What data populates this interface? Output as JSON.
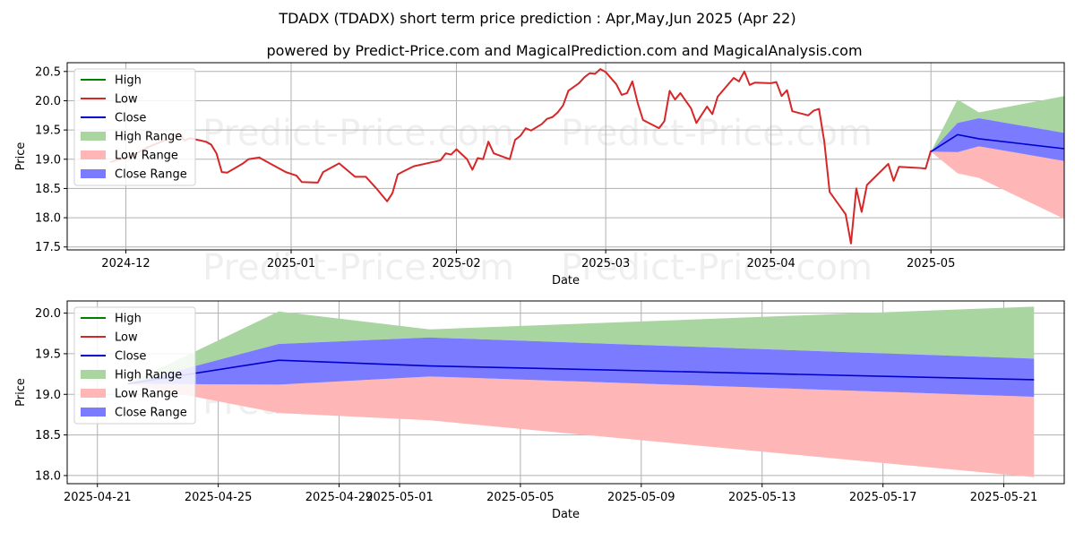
{
  "title": "TDADX (TDADX) short term price prediction : Apr,May,Jun 2025 (Apr 22)",
  "subtitle": "powered by Predict-Price.com and MagicalPrediction.com and MagicalAnalysis.com",
  "watermark": "Predict-Price.com",
  "colors": {
    "high": "#008000",
    "low": "#d62728",
    "close": "#0000cc",
    "high_range": "#a9d5a1",
    "low_range": "#ffb6b6",
    "close_range": "#7b7bff"
  },
  "chart_data": [
    {
      "type": "line",
      "xlabel": "Date",
      "ylabel": "Price",
      "ylim": [
        17.45,
        20.65
      ],
      "yticks": [
        17.5,
        18.0,
        18.5,
        19.0,
        19.5,
        20.0,
        20.5
      ],
      "ytick_labels": [
        "17.5",
        "18.0",
        "18.5",
        "19.0",
        "19.5",
        "20.0",
        "20.5"
      ],
      "xlim": [
        "2024-11-20",
        "2025-05-26"
      ],
      "xticks": [
        "2024-12-01",
        "2025-01-01",
        "2025-02-01",
        "2025-03-01",
        "2025-04-01",
        "2025-05-01"
      ],
      "xtick_labels": [
        "2024-12",
        "2025-01",
        "2025-02",
        "2025-03",
        "2025-04",
        "2025-05"
      ],
      "grid": true,
      "legend_position": "upper-left",
      "legend": [
        "High",
        "Low",
        "Close",
        "High Range",
        "Low Range",
        "Close Range"
      ],
      "low_history": [
        [
          "2024-11-28",
          18.95
        ],
        [
          "2024-12-02",
          19.05
        ],
        [
          "2024-12-05",
          19.2
        ],
        [
          "2024-12-09",
          19.35
        ],
        [
          "2024-12-11",
          19.45
        ],
        [
          "2024-12-12",
          19.32
        ],
        [
          "2024-12-13",
          19.36
        ],
        [
          "2024-12-16",
          19.3
        ],
        [
          "2024-12-17",
          19.25
        ],
        [
          "2024-12-18",
          19.1
        ],
        [
          "2024-12-19",
          18.78
        ],
        [
          "2024-12-20",
          18.77
        ],
        [
          "2024-12-23",
          18.93
        ],
        [
          "2024-12-24",
          19.0
        ],
        [
          "2024-12-26",
          19.03
        ],
        [
          "2024-12-27",
          18.98
        ],
        [
          "2024-12-30",
          18.83
        ],
        [
          "2024-12-31",
          18.78
        ],
        [
          "2025-01-02",
          18.72
        ],
        [
          "2025-01-03",
          18.61
        ],
        [
          "2025-01-06",
          18.6
        ],
        [
          "2025-01-07",
          18.78
        ],
        [
          "2025-01-10",
          18.93
        ],
        [
          "2025-01-13",
          18.7
        ],
        [
          "2025-01-15",
          18.7
        ],
        [
          "2025-01-17",
          18.5
        ],
        [
          "2025-01-19",
          18.28
        ],
        [
          "2025-01-20",
          18.42
        ],
        [
          "2025-01-21",
          18.74
        ],
        [
          "2025-01-22",
          18.79
        ],
        [
          "2025-01-24",
          18.88
        ],
        [
          "2025-01-27",
          18.94
        ],
        [
          "2025-01-29",
          18.98
        ],
        [
          "2025-01-30",
          19.1
        ],
        [
          "2025-01-31",
          19.08
        ],
        [
          "2025-02-01",
          19.17
        ],
        [
          "2025-02-03",
          19.0
        ],
        [
          "2025-02-04",
          18.82
        ],
        [
          "2025-02-05",
          19.02
        ],
        [
          "2025-02-06",
          19.0
        ],
        [
          "2025-02-07",
          19.3
        ],
        [
          "2025-02-08",
          19.1
        ],
        [
          "2025-02-11",
          19.0
        ],
        [
          "2025-02-12",
          19.33
        ],
        [
          "2025-02-13",
          19.4
        ],
        [
          "2025-02-14",
          19.53
        ],
        [
          "2025-02-15",
          19.49
        ],
        [
          "2025-02-17",
          19.6
        ],
        [
          "2025-02-18",
          19.69
        ],
        [
          "2025-02-19",
          19.72
        ],
        [
          "2025-02-20",
          19.8
        ],
        [
          "2025-02-21",
          19.92
        ],
        [
          "2025-02-22",
          20.17
        ],
        [
          "2025-02-24",
          20.3
        ],
        [
          "2025-02-25",
          20.4
        ],
        [
          "2025-02-26",
          20.47
        ],
        [
          "2025-02-27",
          20.46
        ],
        [
          "2025-02-28",
          20.54
        ],
        [
          "2025-03-01",
          20.49
        ],
        [
          "2025-03-03",
          20.28
        ],
        [
          "2025-03-04",
          20.1
        ],
        [
          "2025-03-05",
          20.13
        ],
        [
          "2025-03-06",
          20.33
        ],
        [
          "2025-03-07",
          19.96
        ],
        [
          "2025-03-08",
          19.67
        ],
        [
          "2025-03-11",
          19.53
        ],
        [
          "2025-03-12",
          19.65
        ],
        [
          "2025-03-13",
          20.17
        ],
        [
          "2025-03-14",
          20.02
        ],
        [
          "2025-03-15",
          20.13
        ],
        [
          "2025-03-17",
          19.87
        ],
        [
          "2025-03-18",
          19.62
        ],
        [
          "2025-03-20",
          19.9
        ],
        [
          "2025-03-21",
          19.77
        ],
        [
          "2025-03-22",
          20.07
        ],
        [
          "2025-03-25",
          20.39
        ],
        [
          "2025-03-26",
          20.33
        ],
        [
          "2025-03-27",
          20.5
        ],
        [
          "2025-03-28",
          20.27
        ],
        [
          "2025-03-29",
          20.31
        ],
        [
          "2025-04-01",
          20.3
        ],
        [
          "2025-04-02",
          20.32
        ],
        [
          "2025-04-03",
          20.08
        ],
        [
          "2025-04-04",
          20.18
        ],
        [
          "2025-04-05",
          19.82
        ],
        [
          "2025-04-08",
          19.75
        ],
        [
          "2025-04-09",
          19.83
        ],
        [
          "2025-04-10",
          19.86
        ],
        [
          "2025-04-11",
          19.3
        ],
        [
          "2025-04-12",
          18.44
        ],
        [
          "2025-04-15",
          18.06
        ],
        [
          "2025-04-16",
          17.56
        ],
        [
          "2025-04-17",
          18.5
        ],
        [
          "2025-04-18",
          18.1
        ],
        [
          "2025-04-19",
          18.56
        ],
        [
          "2025-04-22",
          18.83
        ],
        [
          "2025-04-23",
          18.92
        ],
        [
          "2025-04-24",
          18.63
        ],
        [
          "2025-04-25",
          18.87
        ],
        [
          "2025-04-29",
          18.85
        ],
        [
          "2025-04-30",
          18.84
        ],
        [
          "2025-05-01",
          19.15
        ]
      ],
      "forecast": {
        "dates": [
          "2025-05-01",
          "2025-05-06",
          "2025-05-10",
          "2025-05-26"
        ],
        "close": [
          19.13,
          19.42,
          19.35,
          19.18
        ],
        "high_range_upper": [
          19.13,
          20.02,
          19.8,
          20.08
        ],
        "high_range_lower": [
          19.13,
          19.62,
          19.7,
          19.45
        ],
        "close_range_upper": [
          19.13,
          19.62,
          19.7,
          19.45
        ],
        "close_range_lower": [
          19.13,
          19.12,
          19.22,
          18.97
        ],
        "low_range_upper": [
          19.13,
          19.12,
          19.22,
          18.97
        ],
        "low_range_lower": [
          19.13,
          18.76,
          18.68,
          17.98
        ]
      }
    },
    {
      "type": "line",
      "xlabel": "Date",
      "ylabel": "Price",
      "ylim": [
        17.9,
        20.15
      ],
      "yticks": [
        18.0,
        18.5,
        19.0,
        19.5,
        20.0
      ],
      "ytick_labels": [
        "18.0",
        "18.5",
        "19.0",
        "19.5",
        "20.0"
      ],
      "xlim": [
        "2025-04-20",
        "2025-05-23"
      ],
      "xticks": [
        "2025-04-21",
        "2025-04-25",
        "2025-04-29",
        "2025-05-01",
        "2025-05-05",
        "2025-05-09",
        "2025-05-13",
        "2025-05-17",
        "2025-05-21"
      ],
      "xtick_labels": [
        "2025-04-21",
        "2025-04-25",
        "2025-04-29",
        "2025-05-01",
        "2025-05-05",
        "2025-05-09",
        "2025-05-13",
        "2025-05-17",
        "2025-05-21"
      ],
      "grid": true,
      "legend_position": "upper-left",
      "legend": [
        "High",
        "Low",
        "Close",
        "High Range",
        "Low Range",
        "Close Range"
      ],
      "forecast": {
        "dates": [
          "2025-04-22",
          "2025-04-27",
          "2025-05-02",
          "2025-05-22"
        ],
        "close": [
          19.13,
          19.42,
          19.35,
          19.18
        ],
        "high_range_upper": [
          19.13,
          20.02,
          19.8,
          20.08
        ],
        "high_range_lower": [
          19.13,
          19.62,
          19.7,
          19.44
        ],
        "close_range_upper": [
          19.13,
          19.62,
          19.7,
          19.44
        ],
        "close_range_lower": [
          19.13,
          19.12,
          19.22,
          18.97
        ],
        "low_range_upper": [
          19.13,
          19.12,
          19.22,
          18.97
        ],
        "low_range_lower": [
          19.13,
          18.77,
          18.68,
          17.98
        ]
      }
    }
  ]
}
